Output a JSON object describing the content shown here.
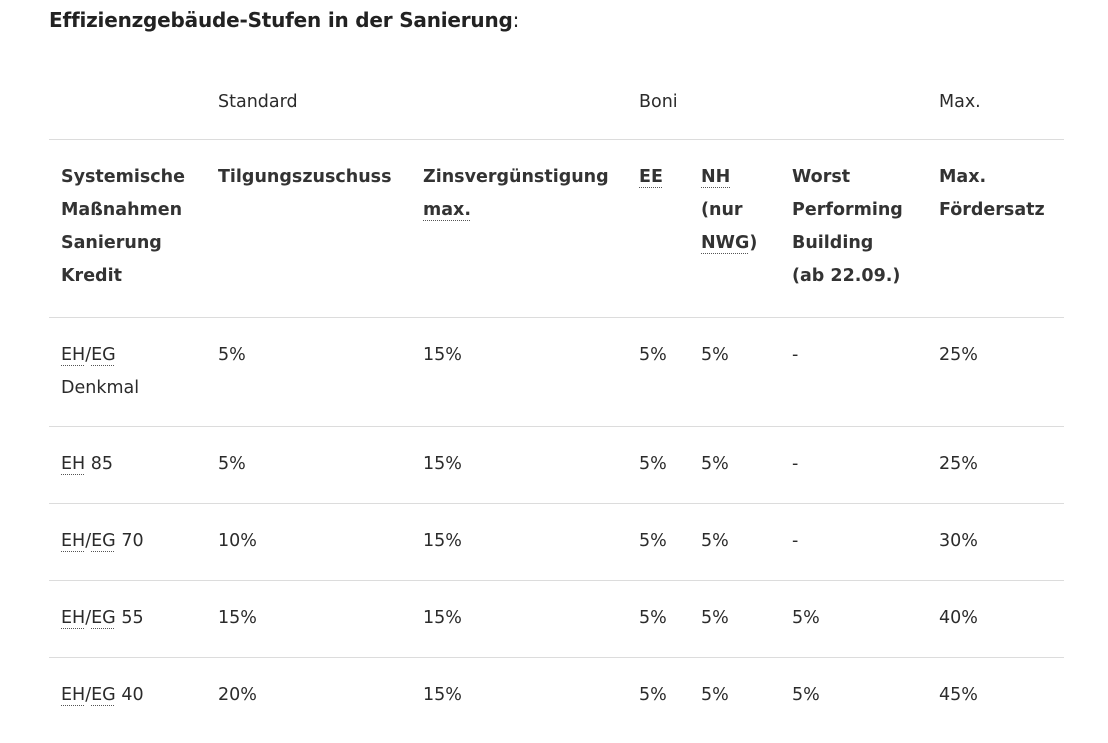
{
  "title": {
    "text": "Effizienzgebäude-Stufen in der Sanierung",
    "colon": ":"
  },
  "group_headers": {
    "standard": "Standard",
    "boni": "Boni",
    "max": "Max."
  },
  "columns": {
    "c1": [
      "Systemische",
      "Maßnahmen",
      "Sanierung",
      "Kredit"
    ],
    "c2": "Tilgungszuschuss",
    "c3_line1": "Zinsvergünstigung",
    "c3_line2": "max.",
    "c4": "EE",
    "c5_nh": "NH",
    "c5_nur": "(nur",
    "c5_nwg": "NWG",
    "c5_close": ")",
    "c6": [
      "Worst",
      "Performing",
      "Building",
      "(ab 22.09.)"
    ],
    "c7": [
      "Max.",
      "Fördersatz"
    ]
  },
  "rows": [
    {
      "label_a": "EH",
      "label_sep": "/",
      "label_b": "EG",
      "label_suffix": "Denkmal",
      "tilgung": "5%",
      "zins": "15%",
      "ee": "5%",
      "nh": "5%",
      "worst": "-",
      "max": "25%"
    },
    {
      "label_a": "EH",
      "label_suffix": " 85",
      "tilgung": "5%",
      "zins": "15%",
      "ee": "5%",
      "nh": "5%",
      "worst": "-",
      "max": "25%"
    },
    {
      "label_a": "EH",
      "label_sep": "/",
      "label_b": "EG",
      "label_suffix": " 70",
      "tilgung": "10%",
      "zins": "15%",
      "ee": "5%",
      "nh": "5%",
      "worst": "-",
      "max": "30%"
    },
    {
      "label_a": "EH",
      "label_sep": "/",
      "label_b": "EG",
      "label_suffix": " 55",
      "tilgung": "15%",
      "zins": "15%",
      "ee": "5%",
      "nh": "5%",
      "worst": "5%",
      "max": "40%"
    },
    {
      "label_a": "EH",
      "label_sep": "/",
      "label_b": "EG",
      "label_suffix": " 40",
      "tilgung": "20%",
      "zins": "15%",
      "ee": "5%",
      "nh": "5%",
      "worst": "5%",
      "max": "45%"
    }
  ]
}
